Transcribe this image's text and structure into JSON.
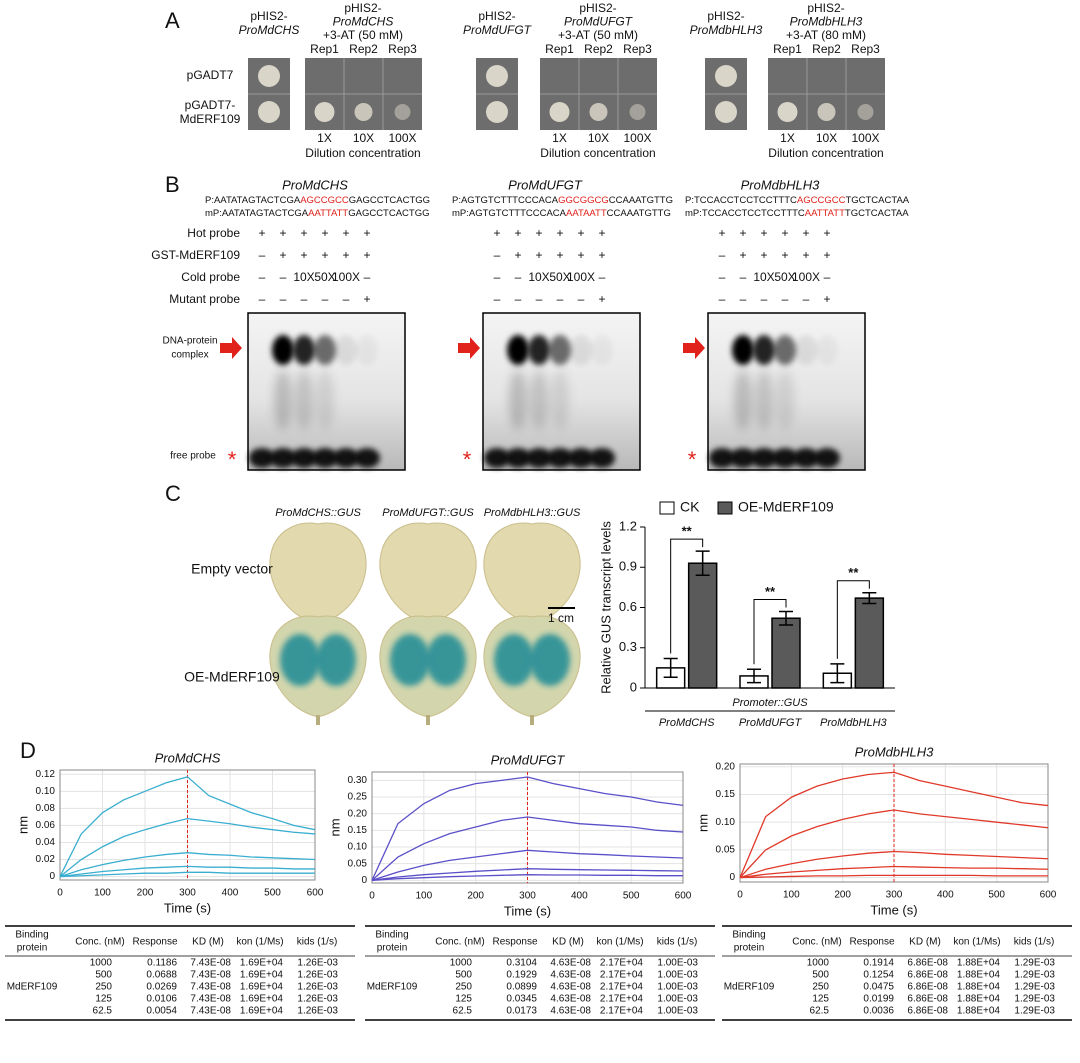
{
  "figure": {
    "panel_a": {
      "letter": "A",
      "row_labels": [
        [
          "pGADT7"
        ],
        [
          "pGADT7-",
          "MdERF109"
        ]
      ],
      "groups": [
        {
          "control": [
            "pHIS2-",
            "ProMdCHS"
          ],
          "treatment": [
            "pHIS2-",
            "ProMdCHS",
            "+3-AT (50 mM)"
          ]
        },
        {
          "control": [
            "pHIS2-",
            "ProMdUFGT"
          ],
          "treatment": [
            "pHIS2-",
            "ProMdUFGT",
            "+3-AT (50 mM)"
          ]
        },
        {
          "control": [
            "pHIS2-",
            "ProMdbHLH3"
          ],
          "treatment": [
            "pHIS2-",
            "ProMdbHLH3",
            "+3-AT (80 mM)"
          ]
        }
      ],
      "reps": [
        "Rep1",
        "Rep2",
        "Rep3"
      ],
      "dilutions": [
        "1X",
        "10X",
        "100X"
      ],
      "dilution_label": "Dilution concentration"
    },
    "panel_b": {
      "letter": "B",
      "groups": [
        {
          "title": "ProMdCHS",
          "probe": [
            "P:AATATAGTACTCGA",
            "AGCCGCC",
            "GAGCCTCACTGG"
          ],
          "mutant": [
            "mP:AATATAGTACTCGA",
            "AATTATT",
            "GAGCCTCACTGG"
          ]
        },
        {
          "title": "ProMdUFGT",
          "probe": [
            "P:AGTGTCTTTCCCACA",
            "GGCGGCG",
            "CCAAATGTTG"
          ],
          "mutant": [
            "mP:AGTGTCTTTCCCACA",
            "AATAATT",
            "CCAAATGTTG"
          ]
        },
        {
          "title": "ProMdbHLH3",
          "probe": [
            "P:TCCACCTCCTCCTTTC",
            "AGCCGCC",
            "TGCTCACTAA"
          ],
          "mutant": [
            "mP:TCCACCTCCTCCTTTC",
            "AATTATT",
            "TGCTCACTAA"
          ]
        }
      ],
      "row_labels": [
        "Hot probe",
        "GST-MdERF109",
        "Cold probe",
        "Mutant probe"
      ],
      "lanes": [
        [
          "+",
          "+",
          "+",
          "+",
          "+",
          "+"
        ],
        [
          "–",
          "+",
          "+",
          "+",
          "+",
          "+"
        ],
        [
          "–",
          "–",
          "10X",
          "50X",
          "100X",
          "–"
        ],
        [
          "–",
          "–",
          "–",
          "–",
          "–",
          "+"
        ]
      ],
      "complex_label": [
        "DNA-protein",
        "complex"
      ],
      "free_label": "free probe",
      "star": "*"
    },
    "panel_c": {
      "letter": "C",
      "leaf_titles": [
        "ProMdCHS::GUS",
        "ProMdUFGT::GUS",
        "ProMdbHLH3::GUS"
      ],
      "row_labels": [
        "Empty vector",
        "OE-MdERF109"
      ],
      "scale_label": "1 cm"
    },
    "panel_d": {
      "letter": "D",
      "header_first": [
        "Binding",
        "protein"
      ],
      "header": [
        "Conc. (nM)",
        "Response",
        "KD (M)",
        "kon (1/Ms)",
        "kids (1/s)"
      ],
      "tables": [
        {
          "protein": "MdERF109",
          "rows": [
            [
              "1000",
              "0.1186",
              "7.43E-08",
              "1.69E+04",
              "1.26E-03"
            ],
            [
              "500",
              "0.0688",
              "7.43E-08",
              "1.69E+04",
              "1.26E-03"
            ],
            [
              "250",
              "0.0269",
              "7.43E-08",
              "1.69E+04",
              "1.26E-03"
            ],
            [
              "125",
              "0.0106",
              "7.43E-08",
              "1.69E+04",
              "1.26E-03"
            ],
            [
              "62.5",
              "0.0054",
              "7.43E-08",
              "1.69E+04",
              "1.26E-03"
            ]
          ]
        },
        {
          "protein": "MdERF109",
          "rows": [
            [
              "1000",
              "0.3104",
              "4.63E-08",
              "2.17E+04",
              "1.00E-03"
            ],
            [
              "500",
              "0.1929",
              "4.63E-08",
              "2.17E+04",
              "1.00E-03"
            ],
            [
              "250",
              "0.0899",
              "4.63E-08",
              "2.17E+04",
              "1.00E-03"
            ],
            [
              "125",
              "0.0345",
              "4.63E-08",
              "2.17E+04",
              "1.00E-03"
            ],
            [
              "62.5",
              "0.0173",
              "4.63E-08",
              "2.17E+04",
              "1.00E-03"
            ]
          ]
        },
        {
          "protein": "MdERF109",
          "rows": [
            [
              "1000",
              "0.1914",
              "6.86E-08",
              "1.88E+04",
              "1.29E-03"
            ],
            [
              "500",
              "0.1254",
              "6.86E-08",
              "1.88E+04",
              "1.29E-03"
            ],
            [
              "250",
              "0.0475",
              "6.86E-08",
              "1.88E+04",
              "1.29E-03"
            ],
            [
              "125",
              "0.0199",
              "6.86E-08",
              "1.88E+04",
              "1.29E-03"
            ],
            [
              "62.5",
              "0.0036",
              "6.86E-08",
              "1.88E+04",
              "1.29E-03"
            ]
          ]
        }
      ]
    }
  },
  "chart_data": [
    {
      "type": "bar",
      "ylabel": "Relative GUS transcript levels",
      "xlabel": "Promoter::GUS",
      "categories": [
        "ProMdCHS",
        "ProMdUFGT",
        "ProMdbHLH3"
      ],
      "series": [
        {
          "name": "CK",
          "color": "#ffffff",
          "values": [
            0.15,
            0.09,
            0.11
          ],
          "errors": [
            0.07,
            0.05,
            0.07
          ]
        },
        {
          "name": "OE-MdERF109",
          "color": "#5a5a5a",
          "values": [
            0.93,
            0.52,
            0.67
          ],
          "errors": [
            0.09,
            0.05,
            0.04
          ]
        }
      ],
      "annotations": [
        "**",
        "**",
        "**"
      ],
      "ylim": [
        0,
        1.2
      ],
      "yticks": [
        0,
        0.3,
        0.6,
        0.9,
        1.2
      ],
      "legend": "top"
    },
    {
      "type": "line",
      "title": "ProMdCHS",
      "xlabel": "Time (s)",
      "ylabel": "nm",
      "color": "#3aaed0",
      "grid": true,
      "vline": 300,
      "x": [
        0,
        50,
        100,
        150,
        200,
        250,
        300,
        350,
        400,
        450,
        500,
        550,
        600
      ],
      "xlim": [
        0,
        600
      ],
      "xticks": [
        0,
        100,
        200,
        300,
        400,
        500,
        600
      ],
      "ylim": [
        -0.004,
        0.125
      ],
      "yticks": [
        0,
        0.02,
        0.04,
        0.06,
        0.08,
        {
          "value": 0.1,
          "label": "0.10"
        },
        0.12
      ],
      "series": [
        {
          "values": [
            0,
            0.05,
            0.075,
            0.09,
            0.1,
            0.11,
            0.117,
            0.095,
            0.085,
            0.075,
            0.068,
            0.06,
            0.055
          ]
        },
        {
          "values": [
            0,
            0.02,
            0.035,
            0.047,
            0.055,
            0.062,
            0.068,
            0.065,
            0.062,
            0.058,
            0.055,
            0.052,
            0.05
          ]
        },
        {
          "values": [
            0,
            0.008,
            0.014,
            0.019,
            0.023,
            0.026,
            0.028,
            0.026,
            0.025,
            0.023,
            0.022,
            0.021,
            0.02
          ]
        },
        {
          "values": [
            0,
            0.003,
            0.006,
            0.008,
            0.01,
            0.011,
            0.012,
            0.011,
            0.011,
            0.01,
            0.01,
            0.009,
            0.009
          ]
        },
        {
          "values": [
            0,
            0.001,
            0.002,
            0.003,
            0.004,
            0.004,
            0.005,
            0.005,
            0.004,
            0.004,
            0.004,
            0.004,
            0.004
          ]
        }
      ]
    },
    {
      "type": "line",
      "title": "ProMdUFGT",
      "xlabel": "Time (s)",
      "ylabel": "nm",
      "color": "#5a4fc8",
      "grid": true,
      "vline": 300,
      "x": [
        0,
        50,
        100,
        150,
        200,
        250,
        300,
        350,
        400,
        450,
        500,
        550,
        600
      ],
      "xlim": [
        0,
        600
      ],
      "xticks": [
        0,
        100,
        200,
        300,
        400,
        500,
        600
      ],
      "ylim": [
        -0.008,
        0.325
      ],
      "yticks": [
        0,
        0.05,
        {
          "value": 0.1,
          "label": "0.10"
        },
        0.15,
        {
          "value": 0.2,
          "label": "0.20"
        },
        0.25,
        {
          "value": 0.3,
          "label": "0.30"
        }
      ],
      "series": [
        {
          "values": [
            0,
            0.17,
            0.23,
            0.27,
            0.29,
            0.3,
            0.31,
            0.29,
            0.275,
            0.26,
            0.25,
            0.235,
            0.225
          ]
        },
        {
          "values": [
            0,
            0.07,
            0.11,
            0.14,
            0.16,
            0.18,
            0.19,
            0.18,
            0.17,
            0.165,
            0.16,
            0.15,
            0.145
          ]
        },
        {
          "values": [
            0,
            0.025,
            0.045,
            0.06,
            0.07,
            0.08,
            0.09,
            0.085,
            0.08,
            0.077,
            0.073,
            0.07,
            0.067
          ]
        },
        {
          "values": [
            0,
            0.01,
            0.017,
            0.022,
            0.027,
            0.031,
            0.035,
            0.033,
            0.032,
            0.031,
            0.03,
            0.029,
            0.028
          ]
        },
        {
          "values": [
            0,
            0.005,
            0.008,
            0.011,
            0.013,
            0.015,
            0.017,
            0.016,
            0.016,
            0.015,
            0.015,
            0.014,
            0.014
          ]
        }
      ]
    },
    {
      "type": "line",
      "title": "ProMdbHLH3",
      "xlabel": "Time (s)",
      "ylabel": "nm",
      "color": "#e0392a",
      "grid": true,
      "vline": 300,
      "x": [
        0,
        50,
        100,
        150,
        200,
        250,
        300,
        350,
        400,
        450,
        500,
        550,
        600
      ],
      "xlim": [
        0,
        600
      ],
      "xticks": [
        0,
        100,
        200,
        300,
        400,
        500,
        600
      ],
      "ylim": [
        -0.008,
        0.205
      ],
      "yticks": [
        0,
        0.05,
        {
          "value": 0.1,
          "label": "0.10"
        },
        0.15,
        {
          "value": 0.2,
          "label": "0.20"
        }
      ],
      "series": [
        {
          "values": [
            0,
            0.11,
            0.145,
            0.165,
            0.178,
            0.186,
            0.19,
            0.175,
            0.165,
            0.155,
            0.145,
            0.135,
            0.13
          ]
        },
        {
          "values": [
            0,
            0.05,
            0.075,
            0.092,
            0.105,
            0.115,
            0.122,
            0.115,
            0.11,
            0.105,
            0.1,
            0.095,
            0.09
          ]
        },
        {
          "values": [
            0,
            0.015,
            0.025,
            0.033,
            0.039,
            0.044,
            0.047,
            0.045,
            0.042,
            0.04,
            0.038,
            0.036,
            0.034
          ]
        },
        {
          "values": [
            0,
            0.006,
            0.01,
            0.013,
            0.016,
            0.018,
            0.02,
            0.019,
            0.018,
            0.017,
            0.017,
            0.016,
            0.015
          ]
        },
        {
          "values": [
            0,
            0.001,
            0.002,
            0.003,
            0.003,
            0.004,
            0.004,
            0.004,
            0.004,
            0.004,
            0.003,
            0.003,
            0.003
          ]
        }
      ]
    }
  ]
}
